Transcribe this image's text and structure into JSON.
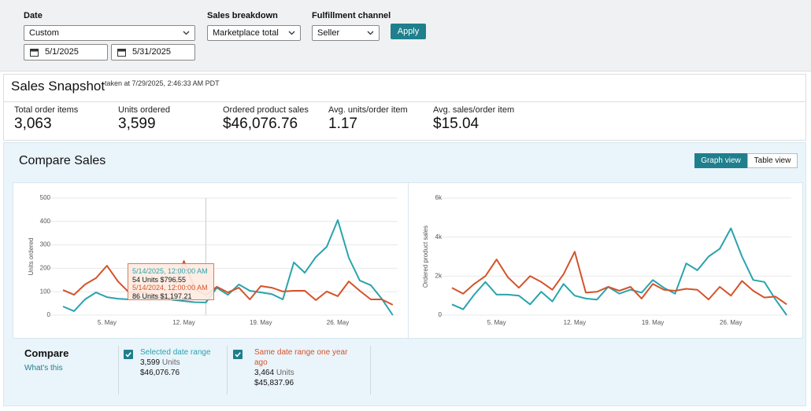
{
  "filters": {
    "date": {
      "label": "Date",
      "value": "Custom",
      "start": "5/1/2025",
      "end": "5/31/2025"
    },
    "sales_breakdown": {
      "label": "Sales breakdown",
      "value": "Marketplace total"
    },
    "fulfillment": {
      "label": "Fulfillment channel",
      "value": "Seller"
    },
    "apply": "Apply"
  },
  "snapshot": {
    "title": "Sales Snapshot",
    "taken": "taken at 7/29/2025, 2:46:33 AM PDT",
    "metrics": [
      {
        "label": "Total order items",
        "value": "3,063"
      },
      {
        "label": "Units ordered",
        "value": "3,599"
      },
      {
        "label": "Ordered product sales",
        "value": "$46,076.76"
      },
      {
        "label": "Avg. units/order item",
        "value": "1.17"
      },
      {
        "label": "Avg. sales/order item",
        "value": "$15.04"
      }
    ]
  },
  "compare": {
    "title": "Compare Sales",
    "views": [
      "Graph view",
      "Table view"
    ],
    "tooltip": [
      "5/14/2025, 12:00:00 AM",
      "54 Units $796.55",
      "5/14/2024, 12:00:00 AM",
      "86 Units $1,197.21"
    ],
    "legend": {
      "title": "Compare",
      "link": "What's this",
      "items": [
        {
          "units": "3,599",
          "unit_label": "Units",
          "sales": "$46,076.76"
        },
        {
          "units": "3,464",
          "unit_label": "Units",
          "sales": "$45,837.96"
        }
      ]
    }
  },
  "chart_data": [
    {
      "type": "line",
      "y_label": "Units ordered",
      "categories": [
        null,
        null,
        null,
        null,
        "5. May",
        null,
        null,
        null,
        null,
        null,
        null,
        "12. May",
        null,
        null,
        null,
        null,
        null,
        null,
        "19. May",
        null,
        null,
        null,
        null,
        null,
        null,
        "26. May",
        null,
        null,
        null,
        null,
        null
      ],
      "ylim": [
        0,
        500
      ],
      "yticks": [
        0,
        100,
        200,
        300,
        400,
        500
      ],
      "grid": true,
      "series": [
        {
          "name": "Selected date range",
          "color": "#2aa3ad",
          "values": [
            37,
            17,
            67,
            97,
            77,
            70,
            67,
            74,
            70,
            75,
            65,
            60,
            55,
            54,
            117,
            87,
            131,
            104,
            97,
            90,
            67,
            225,
            181,
            248,
            292,
            406,
            245,
            148,
            128,
            70,
            0
          ]
        },
        {
          "name": "Same date range one year ago",
          "color": "#d4532a",
          "values": [
            107,
            87,
            131,
            158,
            211,
            144,
            97,
            100,
            90,
            80,
            95,
            231,
            110,
            86,
            121,
            97,
            117,
            67,
            124,
            117,
            101,
            104,
            104,
            64,
            101,
            81,
            144,
            104,
            67,
            67,
            44
          ]
        }
      ]
    },
    {
      "type": "line",
      "y_label": "Ordered product sales",
      "categories": [
        null,
        null,
        null,
        null,
        "5. May",
        null,
        null,
        null,
        null,
        null,
        null,
        "12. May",
        null,
        null,
        null,
        null,
        null,
        null,
        "19. May",
        null,
        null,
        null,
        null,
        null,
        null,
        "26. May",
        null,
        null,
        null,
        null,
        null
      ],
      "ylim": [
        0,
        6000
      ],
      "yticks": [
        0,
        {
          "value": 2000,
          "label": "2k"
        },
        {
          "value": 4000,
          "label": "4k"
        },
        {
          "value": 6000,
          "label": "6k"
        }
      ],
      "grid": true,
      "series": [
        {
          "color": "#2aa3ad",
          "values": [
            550,
            300,
            1050,
            1700,
            1050,
            1050,
            1000,
            550,
            1200,
            700,
            1600,
            1000,
            850,
            797,
            1450,
            1100,
            1300,
            1150,
            1800,
            1400,
            1100,
            2650,
            2300,
            3000,
            3400,
            4450,
            3000,
            1800,
            1700,
            800,
            0
          ]
        },
        {
          "color": "#d4532a",
          "values": [
            1400,
            1100,
            1600,
            2000,
            2850,
            1950,
            1400,
            2000,
            1700,
            1300,
            2100,
            3250,
            1150,
            1197,
            1450,
            1250,
            1450,
            850,
            1600,
            1300,
            1250,
            1350,
            1300,
            800,
            1450,
            1000,
            1750,
            1250,
            900,
            950,
            550
          ]
        }
      ]
    }
  ]
}
